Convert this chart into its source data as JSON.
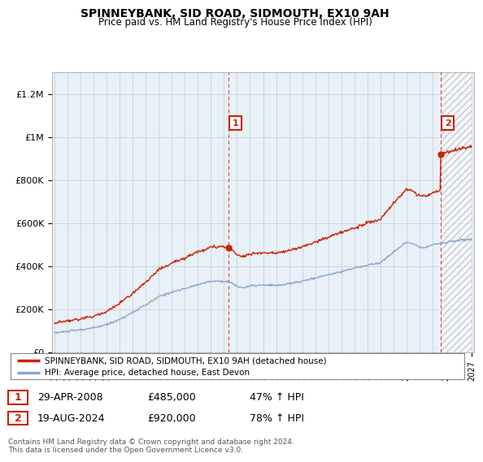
{
  "title": "SPINNEYBANK, SID ROAD, SIDMOUTH, EX10 9AH",
  "subtitle": "Price paid vs. HM Land Registry's House Price Index (HPI)",
  "property_label": "SPINNEYBANK, SID ROAD, SIDMOUTH, EX10 9AH (detached house)",
  "hpi_label": "HPI: Average price, detached house, East Devon",
  "property_color": "#cc2200",
  "hpi_color": "#88aacc",
  "ylim": [
    0,
    1300000
  ],
  "yticks": [
    0,
    200000,
    400000,
    600000,
    800000,
    1000000,
    1200000
  ],
  "ytick_labels": [
    "£0",
    "£200K",
    "£400K",
    "£600K",
    "£800K",
    "£1M",
    "£1.2M"
  ],
  "sale1_date": "29-APR-2008",
  "sale1_price": 485000,
  "sale1_pct": "47%",
  "sale2_date": "19-AUG-2024",
  "sale2_price": 920000,
  "sale2_pct": "78%",
  "footer": "Contains HM Land Registry data © Crown copyright and database right 2024.\nThis data is licensed under the Open Government Licence v3.0.",
  "background_color": "#ffffff",
  "plot_bg_color": "#e8f0f8",
  "grid_color": "#cccccc",
  "sale1_x": 2008.33,
  "sale2_x": 2024.63,
  "xmin": 1995,
  "xmax": 2027
}
